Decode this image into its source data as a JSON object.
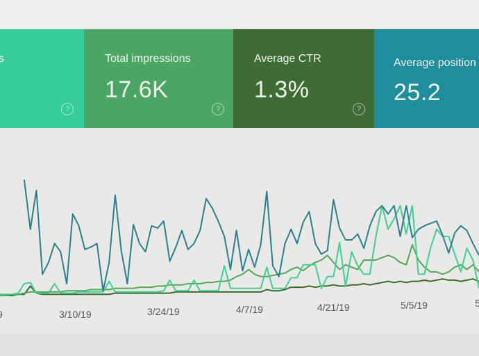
{
  "cards": [
    {
      "label": "s",
      "value": "",
      "help": "?",
      "color": "#37cc9c"
    },
    {
      "label": "Total impressions",
      "value": "17.6K",
      "help": "?",
      "color": "#4ba563"
    },
    {
      "label": "Average CTR",
      "value": "1.3%",
      "help": "?",
      "color": "#3f6b35"
    },
    {
      "label": "Average position",
      "value": "25.2",
      "help": "?",
      "color": "#1f8e9c"
    }
  ],
  "chart_data": {
    "type": "line",
    "title": "",
    "xlabel": "",
    "ylabel": "",
    "grid": false,
    "y_axis_shown": false,
    "x_tick_labels": [
      "9",
      "3/10/19",
      "3/24/19",
      "4/7/19",
      "4/21/19",
      "5/5/19",
      "5"
    ],
    "series": [
      {
        "color": "#2a7f8f",
        "values": [
          null,
          null,
          null,
          null,
          98,
          56,
          89,
          18,
          28,
          44,
          37,
          10,
          69,
          59,
          39,
          41,
          44,
          4,
          28,
          85,
          38,
          10,
          60,
          44,
          37,
          59,
          57,
          63,
          29,
          41,
          55,
          39,
          44,
          55,
          82,
          74,
          63,
          50,
          22,
          55,
          21,
          39,
          24,
          43,
          88,
          25,
          16,
          44,
          56,
          44,
          62,
          71,
          44,
          35,
          38,
          81,
          57,
          47,
          47,
          52,
          40,
          59,
          71,
          76,
          69,
          76,
          50,
          76,
          49,
          56,
          59,
          61,
          63,
          51,
          36,
          53,
          59,
          55,
          44,
          34
        ]
      },
      {
        "color": "#3fcf95",
        "values": [
          1,
          1,
          1,
          2,
          10,
          11,
          2,
          2,
          2,
          10,
          2,
          2,
          2,
          3,
          3,
          3,
          3,
          3,
          12,
          3,
          3,
          3,
          3,
          3,
          3,
          3,
          3,
          4,
          13,
          4,
          4,
          4,
          13,
          4,
          4,
          4,
          4,
          25,
          6,
          6,
          6,
          6,
          6,
          6,
          24,
          6,
          6,
          6,
          15,
          15,
          26,
          26,
          26,
          6,
          16,
          16,
          45,
          8,
          37,
          25,
          18,
          18,
          50,
          76,
          56,
          65,
          76,
          52,
          76,
          18,
          18,
          40,
          56,
          50,
          50,
          35,
          20,
          40,
          30,
          6
        ]
      },
      {
        "color": "#54a852",
        "values": [
          0,
          0,
          1,
          1,
          2,
          3,
          3,
          3,
          3,
          3,
          3,
          4,
          4,
          4,
          4,
          5,
          5,
          5,
          5,
          6,
          6,
          6,
          6,
          7,
          7,
          7,
          8,
          8,
          9,
          9,
          9,
          10,
          10,
          10,
          11,
          11,
          12,
          12,
          13,
          16,
          18,
          22,
          18,
          16,
          16,
          17,
          18,
          19,
          22,
          24,
          21,
          25,
          28,
          30,
          34,
          28,
          22,
          26,
          24,
          22,
          30,
          30,
          30,
          32,
          34,
          32,
          28,
          26,
          43,
          30,
          24,
          20,
          20,
          18,
          20,
          24,
          26,
          22,
          26,
          20
        ]
      },
      {
        "color": "#3c6a2e",
        "values": [
          0,
          0,
          0,
          1,
          1,
          8,
          2,
          1,
          1,
          1,
          1,
          1,
          1,
          1,
          1,
          1,
          1,
          1,
          1,
          2,
          2,
          2,
          2,
          2,
          2,
          2,
          2,
          2,
          2,
          3,
          3,
          3,
          3,
          3,
          3,
          3,
          3,
          3,
          3,
          3,
          3,
          3,
          3,
          3,
          5,
          4,
          4,
          5,
          7,
          7,
          7,
          8,
          7,
          8,
          8,
          9,
          8,
          8,
          9,
          9,
          10,
          9,
          10,
          11,
          12,
          11,
          12,
          11,
          12,
          12,
          13,
          12,
          13,
          14,
          13,
          13,
          12,
          13,
          14,
          12
        ]
      }
    ]
  }
}
